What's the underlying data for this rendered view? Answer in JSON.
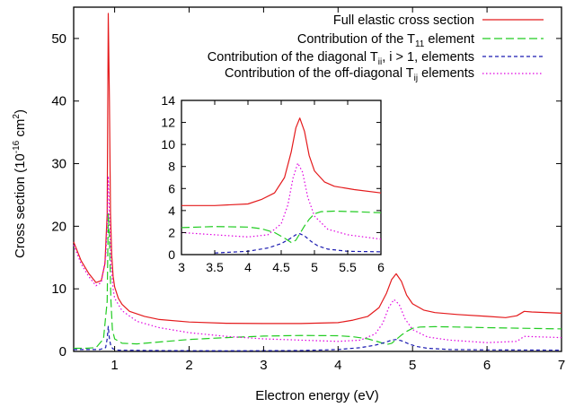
{
  "chart_data": {
    "type": "line",
    "title": "",
    "xlabel": "Electron energy (eV)",
    "ylabel_main": "Cross section (10",
    "ylabel_exp": "-16",
    "ylabel_mid": " cm",
    "ylabel_exp2": "2",
    "ylabel_end": ")",
    "xlim": [
      0.45,
      7
    ],
    "ylim": [
      0,
      55
    ],
    "xticks": [
      1,
      2,
      3,
      4,
      5,
      6,
      7
    ],
    "yticks": [
      0,
      10,
      20,
      30,
      40,
      50
    ],
    "grid": false,
    "legend_position": "top-right",
    "series": [
      {
        "name": "Full elastic cross section",
        "color": "#e41a1c",
        "dash": "solid",
        "x": [
          0.45,
          0.55,
          0.65,
          0.75,
          0.82,
          0.87,
          0.9,
          0.915,
          0.93,
          0.945,
          0.96,
          0.98,
          1.0,
          1.05,
          1.1,
          1.2,
          1.4,
          1.6,
          2.0,
          2.5,
          3.0,
          3.5,
          4.0,
          4.2,
          4.4,
          4.55,
          4.65,
          4.72,
          4.78,
          4.85,
          4.92,
          5.0,
          5.15,
          5.3,
          5.6,
          6.0,
          6.25,
          6.4,
          6.5,
          6.6,
          7.0
        ],
        "y": [
          17.5,
          14.5,
          12.5,
          11.0,
          11.3,
          14.0,
          22.0,
          54.0,
          40.0,
          22.0,
          15.5,
          12.0,
          10.3,
          8.5,
          7.5,
          6.4,
          5.6,
          5.1,
          4.7,
          4.5,
          4.45,
          4.45,
          4.6,
          5.0,
          5.6,
          7.0,
          9.3,
          11.5,
          12.4,
          11.2,
          9.0,
          7.6,
          6.6,
          6.2,
          5.9,
          5.6,
          5.4,
          5.7,
          6.4,
          6.3,
          6.1
        ]
      },
      {
        "name": "Contribution of the T",
        "name_sub": "11",
        "name_end": " element",
        "color": "#22cc22",
        "dash": "9,4",
        "x": [
          0.45,
          0.6,
          0.75,
          0.85,
          0.9,
          0.915,
          0.93,
          0.95,
          0.97,
          1.0,
          1.1,
          1.3,
          1.6,
          2.0,
          2.5,
          3.0,
          3.5,
          4.0,
          4.2,
          4.4,
          4.55,
          4.65,
          4.72,
          4.78,
          4.85,
          4.92,
          5.0,
          5.1,
          5.3,
          5.6,
          6.0,
          7.0
        ],
        "y": [
          0.5,
          0.5,
          0.6,
          2.0,
          8.0,
          22.0,
          18.0,
          8.0,
          3.5,
          2.0,
          1.3,
          1.2,
          1.5,
          1.9,
          2.2,
          2.45,
          2.55,
          2.5,
          2.35,
          2.0,
          1.5,
          1.1,
          1.3,
          1.9,
          2.6,
          3.2,
          3.7,
          3.9,
          3.95,
          3.9,
          3.8,
          3.6
        ]
      },
      {
        "name": "Contribution of the diagonal T",
        "name_sub": "ii",
        "name_end": ", i > 1, elements",
        "color": "#1a1ab0",
        "dash": "4,3",
        "x": [
          0.45,
          0.8,
          0.88,
          0.9,
          0.915,
          0.93,
          0.95,
          0.98,
          1.05,
          1.5,
          2.5,
          3.5,
          4.0,
          4.3,
          4.5,
          4.62,
          4.72,
          4.78,
          4.85,
          4.95,
          5.05,
          5.2,
          5.5,
          6.0,
          7.0
        ],
        "y": [
          0.3,
          0.3,
          0.6,
          2.0,
          4.0,
          2.0,
          0.8,
          0.4,
          0.2,
          0.15,
          0.1,
          0.15,
          0.3,
          0.6,
          1.0,
          1.4,
          1.8,
          1.9,
          1.7,
          1.2,
          0.8,
          0.5,
          0.3,
          0.25,
          0.2
        ]
      },
      {
        "name": "Contribution of the off-diagonal T",
        "name_sub": "ij",
        "name_end": " elements",
        "color": "#e000e0",
        "dash": "1.5,2.5",
        "x": [
          0.45,
          0.55,
          0.65,
          0.75,
          0.82,
          0.88,
          0.9,
          0.915,
          0.93,
          0.95,
          0.98,
          1.0,
          1.1,
          1.3,
          1.6,
          2.0,
          2.5,
          3.0,
          3.5,
          4.0,
          4.3,
          4.5,
          4.6,
          4.68,
          4.75,
          4.82,
          4.9,
          5.0,
          5.2,
          5.5,
          6.0,
          6.4,
          6.5,
          7.0
        ],
        "y": [
          17.0,
          14.0,
          12.0,
          10.5,
          11.0,
          15.0,
          20.0,
          28.0,
          22.0,
          14.0,
          10.0,
          8.5,
          6.5,
          4.8,
          3.8,
          3.0,
          2.4,
          2.0,
          1.8,
          1.6,
          1.8,
          2.8,
          4.5,
          7.0,
          8.3,
          7.5,
          5.2,
          3.5,
          2.3,
          1.8,
          1.4,
          1.6,
          2.4,
          2.2
        ]
      }
    ],
    "inset": {
      "xlim": [
        3,
        6
      ],
      "ylim": [
        0,
        14
      ],
      "xticks": [
        3,
        3.5,
        4,
        4.5,
        5,
        5.5,
        6
      ],
      "xtick_labels": [
        "3",
        "3.5",
        "4",
        "4.5",
        "5",
        "5.5",
        "6"
      ],
      "yticks": [
        0,
        2,
        4,
        6,
        8,
        10,
        12,
        14
      ],
      "ytick_labels": [
        "0",
        "2",
        "4",
        "6",
        "8",
        "10",
        "12",
        "14"
      ]
    }
  }
}
